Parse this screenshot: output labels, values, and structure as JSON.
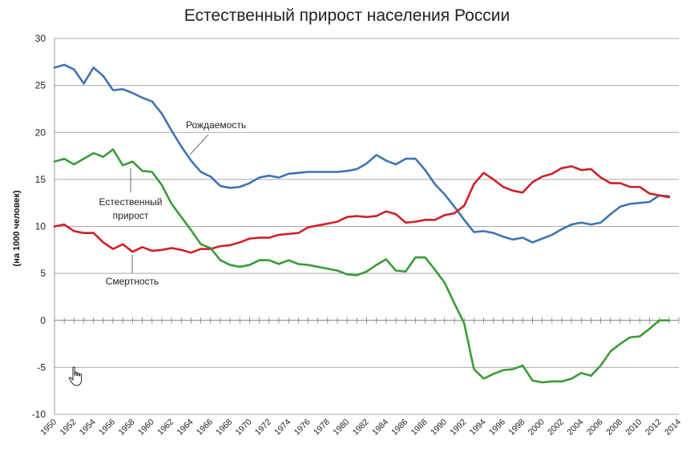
{
  "chart_data": {
    "type": "line",
    "title": "Естественный прирост населения России",
    "ylabel": "(на 1000 человек)",
    "xlabel": "",
    "ylim": [
      -10,
      30
    ],
    "yticks": [
      -10,
      -5,
      0,
      5,
      10,
      15,
      20,
      25,
      30
    ],
    "xlim": [
      1950,
      2014
    ],
    "xticks": [
      1950,
      1952,
      1954,
      1956,
      1958,
      1960,
      1962,
      1964,
      1966,
      1968,
      1970,
      1972,
      1974,
      1976,
      1978,
      1980,
      1982,
      1984,
      1986,
      1988,
      1990,
      1992,
      1994,
      1996,
      1998,
      2000,
      2002,
      2004,
      2006,
      2008,
      2010,
      2012,
      2014
    ],
    "grid": true,
    "x": [
      1950,
      1951,
      1952,
      1953,
      1954,
      1955,
      1956,
      1957,
      1958,
      1959,
      1960,
      1961,
      1962,
      1963,
      1964,
      1965,
      1966,
      1967,
      1968,
      1969,
      1970,
      1971,
      1972,
      1973,
      1974,
      1975,
      1976,
      1977,
      1978,
      1979,
      1980,
      1981,
      1982,
      1983,
      1984,
      1985,
      1986,
      1987,
      1988,
      1989,
      1990,
      1991,
      1992,
      1993,
      1994,
      1995,
      1996,
      1997,
      1998,
      1999,
      2000,
      2001,
      2002,
      2003,
      2004,
      2005,
      2006,
      2007,
      2008,
      2009,
      2010,
      2011,
      2012,
      2013
    ],
    "series": [
      {
        "name": "Рождаемость",
        "color": "#3f73b5",
        "values": [
          26.9,
          27.2,
          26.7,
          25.2,
          26.9,
          26.0,
          24.5,
          24.6,
          24.2,
          23.7,
          23.3,
          22.0,
          20.2,
          18.5,
          17.0,
          15.8,
          15.3,
          14.3,
          14.1,
          14.2,
          14.6,
          15.2,
          15.4,
          15.2,
          15.6,
          15.7,
          15.8,
          15.8,
          15.8,
          15.8,
          15.9,
          16.1,
          16.7,
          17.6,
          17.0,
          16.6,
          17.2,
          17.2,
          16.0,
          14.5,
          13.4,
          12.1,
          10.7,
          9.4,
          9.5,
          9.3,
          8.9,
          8.6,
          8.8,
          8.3,
          8.7,
          9.1,
          9.7,
          10.2,
          10.4,
          10.2,
          10.4,
          11.3,
          12.1,
          12.4,
          12.5,
          12.6,
          13.3,
          13.2
        ]
      },
      {
        "name": "Смертность",
        "color": "#cf2027",
        "values": [
          10.0,
          10.2,
          9.5,
          9.3,
          9.3,
          8.3,
          7.6,
          8.1,
          7.3,
          7.8,
          7.4,
          7.5,
          7.7,
          7.5,
          7.2,
          7.6,
          7.6,
          7.9,
          8.0,
          8.3,
          8.7,
          8.8,
          8.8,
          9.1,
          9.2,
          9.3,
          9.9,
          10.1,
          10.3,
          10.5,
          11.0,
          11.1,
          11.0,
          11.1,
          11.6,
          11.3,
          10.4,
          10.5,
          10.7,
          10.7,
          11.2,
          11.4,
          12.2,
          14.5,
          15.7,
          15.0,
          14.2,
          13.8,
          13.6,
          14.7,
          15.3,
          15.6,
          16.2,
          16.4,
          16.0,
          16.1,
          15.2,
          14.6,
          14.6,
          14.2,
          14.2,
          13.5,
          13.3,
          13.1
        ]
      },
      {
        "name": "Естественный прирост",
        "color": "#3b9b37",
        "values": [
          16.9,
          17.2,
          16.6,
          17.2,
          17.8,
          17.4,
          18.2,
          16.5,
          16.9,
          15.9,
          15.8,
          14.4,
          12.4,
          11.0,
          9.6,
          8.1,
          7.7,
          6.4,
          5.9,
          5.7,
          5.9,
          6.4,
          6.4,
          6.0,
          6.4,
          6.0,
          5.9,
          5.7,
          5.5,
          5.3,
          4.9,
          4.8,
          5.2,
          5.9,
          6.5,
          5.3,
          5.2,
          6.7,
          6.7,
          5.4,
          4.0,
          1.8,
          -0.3,
          -5.2,
          -6.2,
          -5.7,
          -5.3,
          -5.2,
          -4.8,
          -6.4,
          -6.6,
          -6.5,
          -6.5,
          -6.2,
          -5.6,
          -5.9,
          -4.8,
          -3.3,
          -2.5,
          -1.8,
          -1.7,
          -0.9,
          0.0,
          0.0
        ]
      }
    ],
    "annotations": [
      {
        "text": "Рождаемость",
        "series": "Рождаемость"
      },
      {
        "text": "Естественный",
        "text2": "прирост",
        "series": "Естественный прирост"
      },
      {
        "text": "Смертность",
        "series": "Смертность"
      }
    ]
  }
}
